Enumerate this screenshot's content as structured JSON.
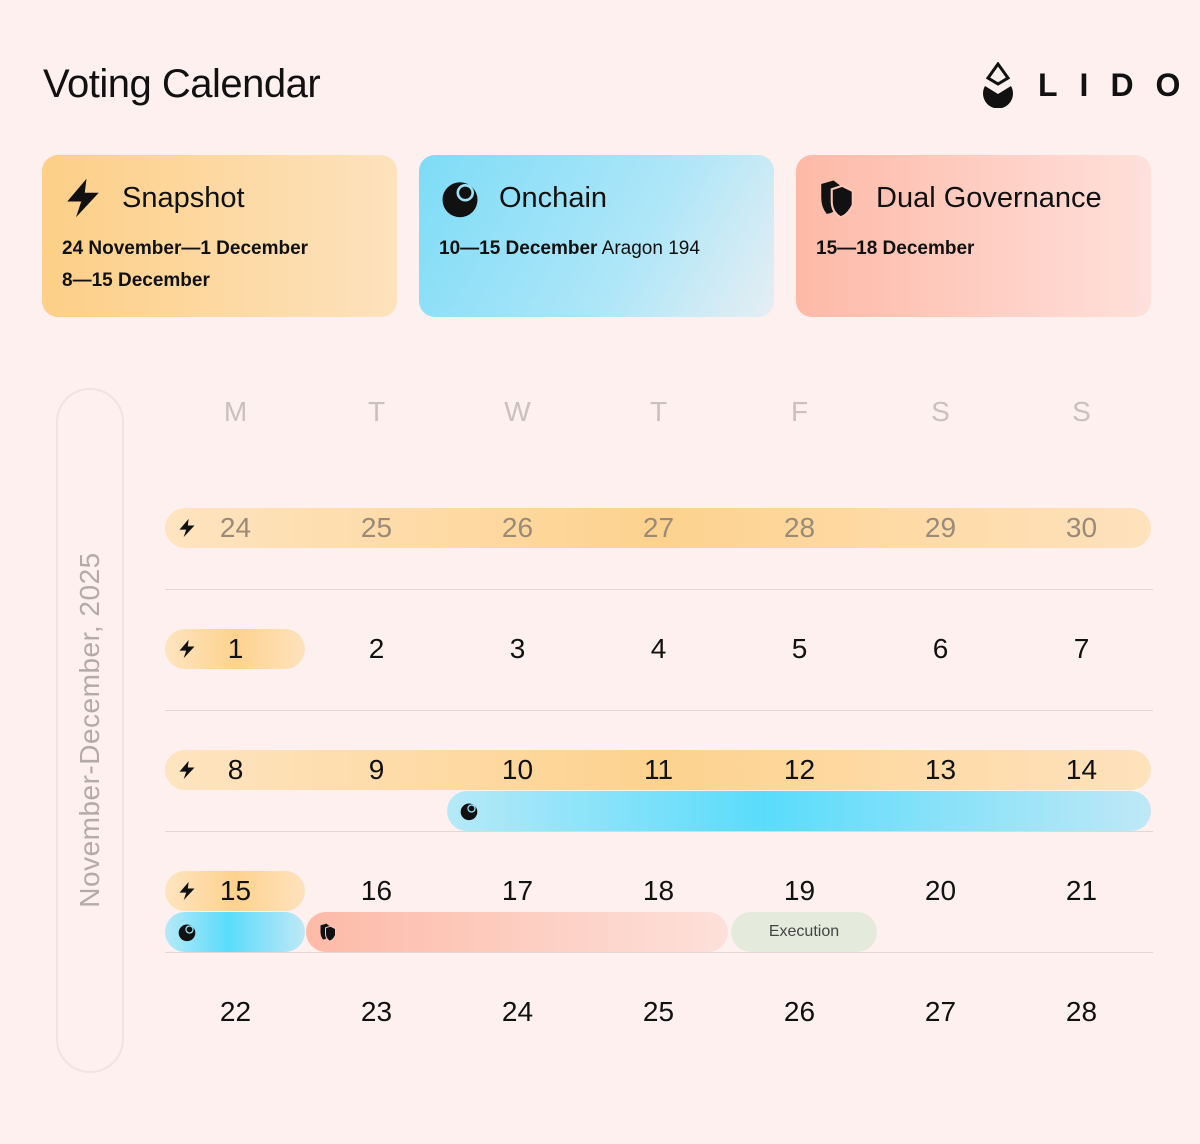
{
  "header": {
    "title": "Voting Calendar",
    "logo_text": "LIDO"
  },
  "cards": [
    {
      "title": "Snapshot",
      "icon": "lightning-icon",
      "lines": [
        {
          "bold": "24 November—1 December",
          "rest": ""
        },
        {
          "bold": "8—15 December",
          "rest": ""
        }
      ],
      "color": "#fdcf87"
    },
    {
      "title": "Onchain",
      "icon": "aragon-icon",
      "lines": [
        {
          "bold": "10—15 December",
          "rest": " Aragon 194"
        }
      ],
      "color": "#7ddcf7"
    },
    {
      "title": "Dual Governance",
      "icon": "shield-icon",
      "lines": [
        {
          "bold": "15—18 December",
          "rest": ""
        }
      ],
      "color": "#fdb9a6"
    }
  ],
  "calendar": {
    "period_label": "November-December, 2025",
    "weekdays": [
      "M",
      "T",
      "W",
      "T",
      "F",
      "S",
      "S"
    ],
    "weeks": [
      [
        "24",
        "25",
        "26",
        "27",
        "28",
        "29",
        "30"
      ],
      [
        "1",
        "2",
        "3",
        "4",
        "5",
        "6",
        "7"
      ],
      [
        "8",
        "9",
        "10",
        "11",
        "12",
        "13",
        "14"
      ],
      [
        "15",
        "16",
        "17",
        "18",
        "19",
        "20",
        "21"
      ],
      [
        "22",
        "23",
        "24",
        "25",
        "26",
        "27",
        "28"
      ]
    ],
    "execution_label": "Execution"
  }
}
